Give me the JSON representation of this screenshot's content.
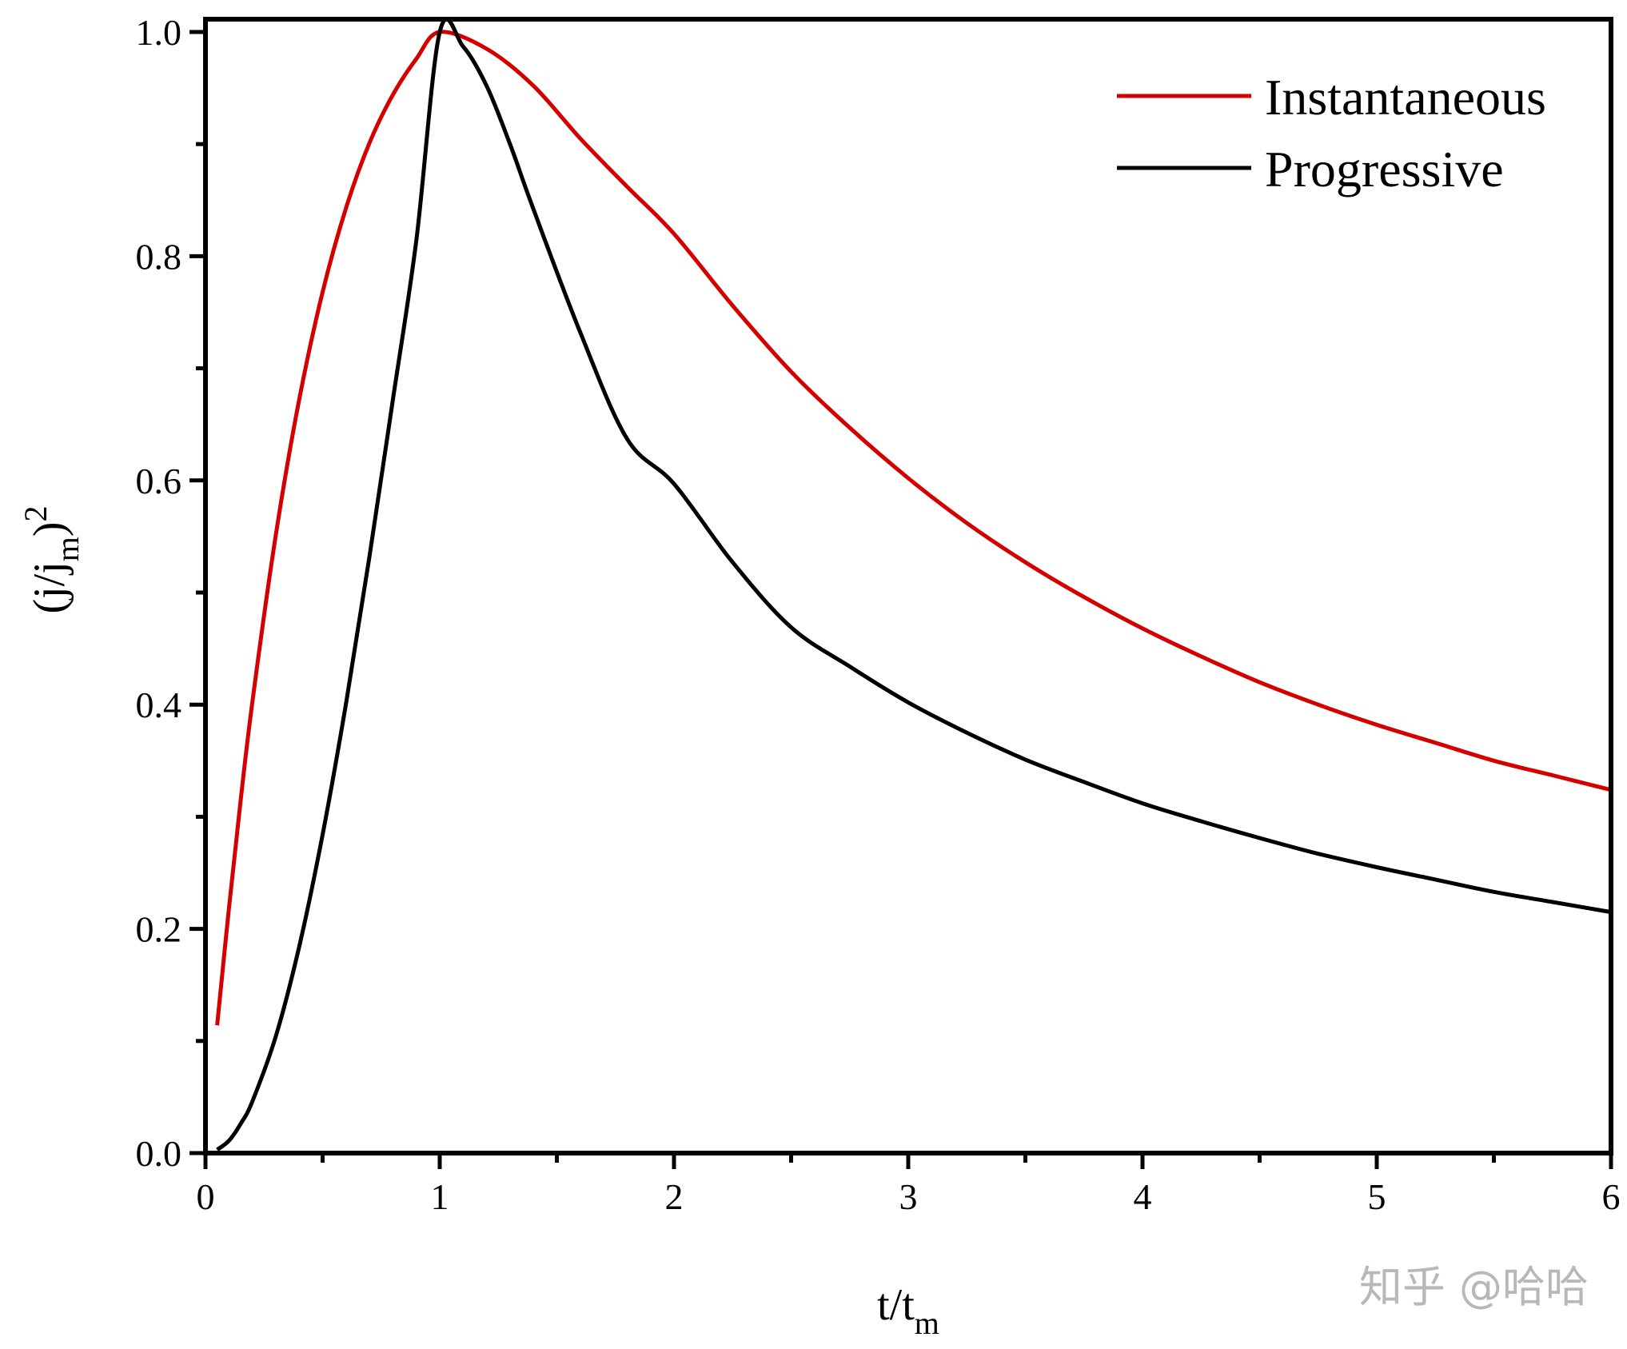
{
  "chart_data": {
    "type": "line",
    "xlabel": "t/t",
    "xlabel_sub": "m",
    "ylabel": "(j/j",
    "ylabel_sub": "m",
    "ylabel_close": ")",
    "ylabel_sup": "2",
    "xlim": [
      0,
      6
    ],
    "ylim": [
      0,
      1.0
    ],
    "xticks": [
      0,
      1,
      2,
      3,
      4,
      5,
      6
    ],
    "yticks": [
      0.0,
      0.2,
      0.4,
      0.6,
      0.8,
      1.0
    ],
    "xtick_labels": [
      "0",
      "1",
      "2",
      "3",
      "4",
      "5",
      "6"
    ],
    "ytick_labels": [
      "0.0",
      "0.2",
      "0.4",
      "0.6",
      "0.8",
      "1.0"
    ],
    "grid": false,
    "legend_position": "top-right",
    "series": [
      {
        "name": "Instantaneous",
        "color": "#d40000",
        "x": [
          0.05,
          0.1,
          0.15,
          0.2,
          0.3,
          0.4,
          0.5,
          0.6,
          0.7,
          0.8,
          0.9,
          1.0,
          1.2,
          1.4,
          1.6,
          1.8,
          2.0,
          2.25,
          2.5,
          2.75,
          3.0,
          3.25,
          3.5,
          3.75,
          4.0,
          4.25,
          4.5,
          4.75,
          5.0,
          5.25,
          5.5,
          5.75,
          6.0
        ],
        "values": [
          0.114,
          0.218,
          0.314,
          0.402,
          0.551,
          0.672,
          0.768,
          0.843,
          0.901,
          0.944,
          0.976,
          1.0,
          0.985,
          0.952,
          0.905,
          0.862,
          0.82,
          0.756,
          0.697,
          0.647,
          0.602,
          0.562,
          0.527,
          0.496,
          0.468,
          0.443,
          0.42,
          0.4,
          0.382,
          0.366,
          0.35,
          0.337,
          0.324
        ]
      },
      {
        "name": "Progressive",
        "color": "#000000",
        "x": [
          0.05,
          0.1,
          0.15,
          0.2,
          0.3,
          0.4,
          0.5,
          0.6,
          0.7,
          0.8,
          0.9,
          1.0,
          1.1,
          1.2,
          1.3,
          1.4,
          1.6,
          1.8,
          2.0,
          2.25,
          2.5,
          2.75,
          3.0,
          3.25,
          3.5,
          3.75,
          4.0,
          4.25,
          4.5,
          4.75,
          5.0,
          5.25,
          5.5,
          5.75,
          6.0
        ],
        "values": [
          0.003,
          0.011,
          0.026,
          0.046,
          0.104,
          0.184,
          0.284,
          0.401,
          0.532,
          0.672,
          0.814,
          1.0,
          0.987,
          0.952,
          0.9,
          0.842,
          0.732,
          0.637,
          0.597,
          0.527,
          0.469,
          0.434,
          0.402,
          0.375,
          0.351,
          0.331,
          0.312,
          0.296,
          0.281,
          0.267,
          0.255,
          0.244,
          0.233,
          0.224,
          0.215
        ]
      }
    ]
  },
  "watermark": "知乎 @哈哈"
}
